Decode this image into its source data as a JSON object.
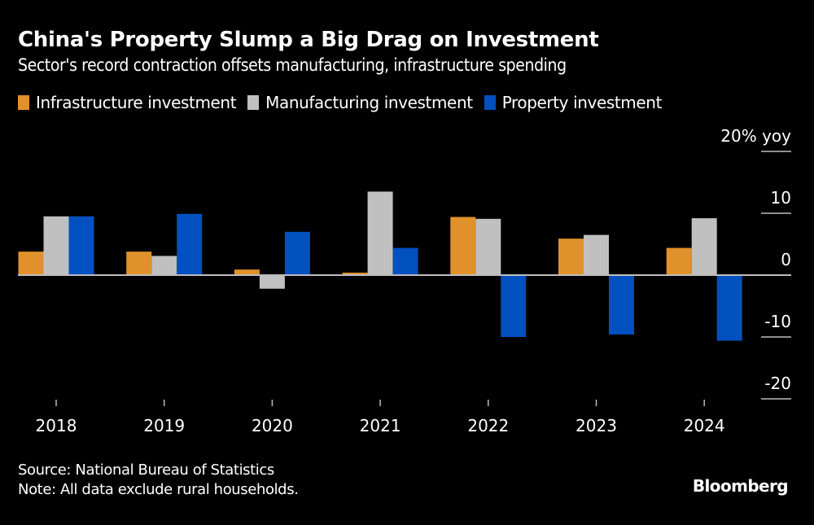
{
  "header": {
    "title": "China's Property Slump a Big Drag on Investment",
    "subtitle": "Sector's record contraction offsets manufacturing, infrastructure spending"
  },
  "footer": {
    "source": "Source: National Bureau of Statistics",
    "note": "Note: All data exclude rural households.",
    "brand": "Bloomberg"
  },
  "chart_data": {
    "type": "bar",
    "title": "China's Property Slump a Big Drag on Investment",
    "subtitle": "Sector's record contraction offsets manufacturing, infrastructure spending",
    "xlabel": "",
    "ylabel": "% yoy",
    "categories": [
      "2018",
      "2019",
      "2020",
      "2021",
      "2022",
      "2023",
      "2024"
    ],
    "series": [
      {
        "name": "Infrastructure investment",
        "color": "#E1912B",
        "values": [
          3.8,
          3.8,
          0.9,
          0.4,
          9.4,
          5.9,
          4.4
        ]
      },
      {
        "name": "Manufacturing investment",
        "color": "#C0C0C0",
        "values": [
          9.5,
          3.1,
          -2.2,
          13.5,
          9.1,
          6.5,
          9.2
        ]
      },
      {
        "name": "Property investment",
        "color": "#0050C0",
        "values": [
          9.5,
          9.9,
          7.0,
          4.4,
          -10.0,
          -9.6,
          -10.6
        ]
      }
    ],
    "ylim": [
      -20,
      20
    ],
    "yticks": [
      20,
      10,
      0,
      -10,
      -20
    ],
    "ytick_labels": [
      "20% yoy",
      "10",
      "0",
      "-10",
      "-20"
    ],
    "grid": false,
    "legend": "top-left",
    "axis_side": "right"
  }
}
